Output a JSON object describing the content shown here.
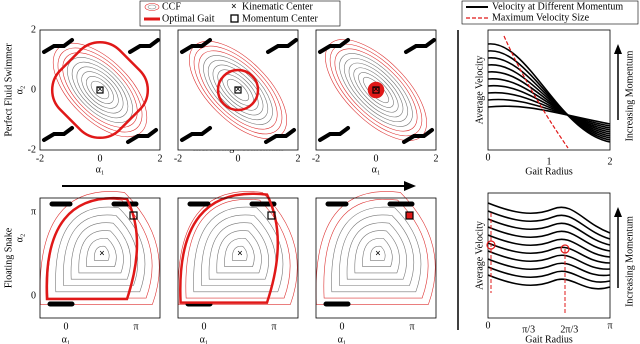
{
  "legend_left": {
    "items": [
      "CCF",
      "Optimal Gait",
      "Kinematic Center",
      "Momentum Center"
    ]
  },
  "row_labels": [
    "Perfect Fluid Swimmer",
    "Floating Snake"
  ],
  "left_panels": {
    "top": {
      "x_label": "α₁",
      "y_label": "α₂",
      "x_ticks": [
        "-2",
        "0",
        "2"
      ],
      "y_ticks": [
        "2",
        "0",
        "-2"
      ]
    },
    "bottom": {
      "x_label": "α₁",
      "y_label": "α₂",
      "x_ticks": [
        "0",
        "π"
      ],
      "y_ticks": [
        "π",
        "0"
      ]
    }
  },
  "momentum_arrow": "Increasing Momentum",
  "right_legend": {
    "items": [
      "Velocity at Different Momentum",
      "Maximum Velocity Size"
    ]
  },
  "right_panels": {
    "top": {
      "y_label": "Average Velocity",
      "x_label": "Gait Radius",
      "x_ticks": [
        "0",
        "1",
        "2"
      ],
      "side_label": "Increasing Momentum"
    },
    "bottom": {
      "y_label": "Average Velocity",
      "x_label": "Gait Radius",
      "x_ticks": [
        "0",
        "π/3",
        "2π/3",
        "π"
      ],
      "side_label": "Increasing Momentum"
    }
  }
}
